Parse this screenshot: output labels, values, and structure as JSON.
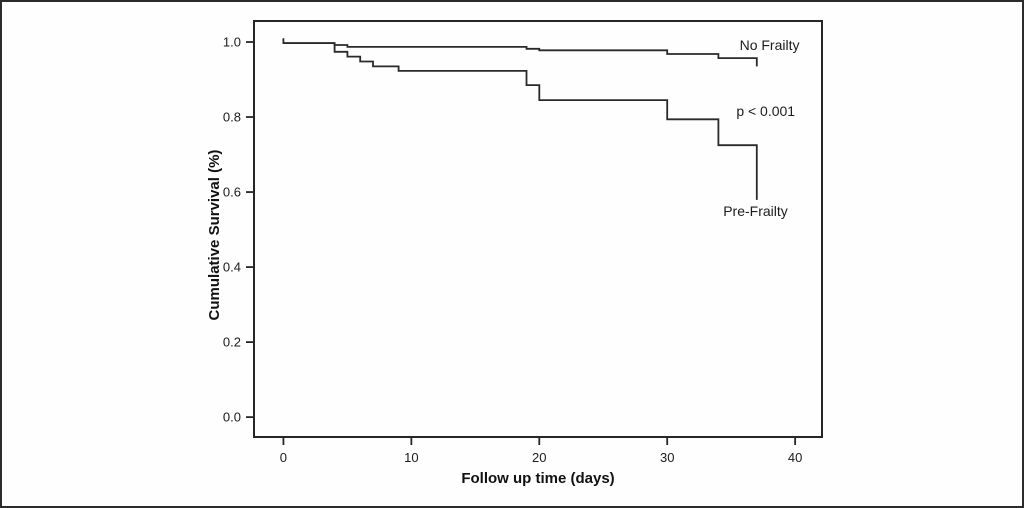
{
  "figure": {
    "frame_border_color": "#2c2c2c",
    "background_color": "#fefefe"
  },
  "chart_data": {
    "type": "line",
    "subtype": "kaplan-meier-step",
    "title": "",
    "xlabel": "Follow up time (days)",
    "ylabel": "Cumulative Survival (%)",
    "xlim": [
      -2.3,
      42.1
    ],
    "ylim": [
      -0.053,
      1.056
    ],
    "grid": false,
    "legend_position": "inline-annotations",
    "line_color": "#2a2a2a",
    "x_ticks": {
      "values": [
        0,
        10,
        20,
        30,
        40
      ],
      "labels": [
        "0",
        "10",
        "20",
        "30",
        "40"
      ]
    },
    "y_ticks": {
      "values": [
        0.0,
        0.2,
        0.4,
        0.6,
        0.8,
        1.0
      ],
      "labels": [
        "0.0",
        "0.2",
        "0.4",
        "0.6",
        "0.8",
        "1.0"
      ]
    },
    "series": [
      {
        "name": "No Frailty",
        "steps": [
          [
            0,
            1.01
          ],
          [
            0,
            0.997
          ],
          [
            4,
            0.992
          ],
          [
            5,
            0.987
          ],
          [
            19,
            0.982
          ],
          [
            20,
            0.978
          ],
          [
            30,
            0.968
          ],
          [
            34,
            0.957
          ],
          [
            37,
            0.935
          ]
        ]
      },
      {
        "name": "Pre-Frailty",
        "steps": [
          [
            0,
            0.997
          ],
          [
            4,
            0.974
          ],
          [
            5,
            0.961
          ],
          [
            6,
            0.948
          ],
          [
            7,
            0.935
          ],
          [
            9,
            0.923
          ],
          [
            19,
            0.885
          ],
          [
            20,
            0.845
          ],
          [
            30,
            0.794
          ],
          [
            34,
            0.725
          ],
          [
            37,
            0.579
          ]
        ]
      }
    ],
    "annotations": [
      {
        "id": "no-frailty-label",
        "text": "No Frailty",
        "x": 38.0,
        "y": 0.992
      },
      {
        "id": "p-value-label",
        "text": "p < 0.001",
        "x": 37.7,
        "y": 0.816
      },
      {
        "id": "pre-frailty-label",
        "text": "Pre-Frailty",
        "x": 36.9,
        "y": 0.549
      }
    ]
  }
}
